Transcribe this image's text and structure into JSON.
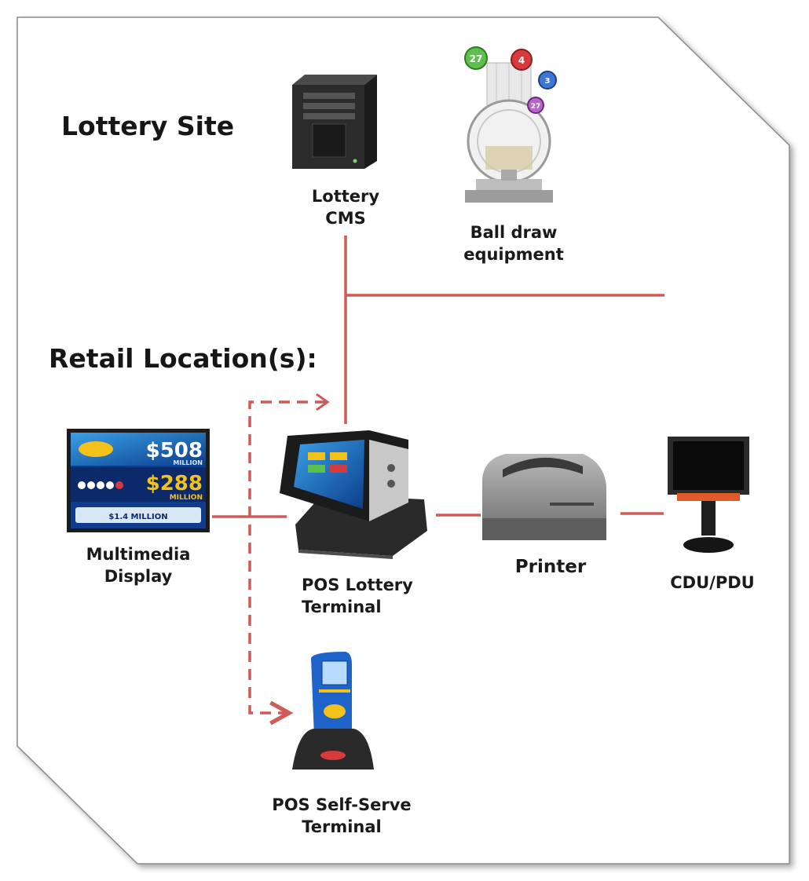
{
  "sections": {
    "lottery_site": "Lottery Site",
    "retail_locations": "Retail Location(s):"
  },
  "nodes": {
    "cms": {
      "label": "Lottery\nCMS",
      "icon": "server-icon"
    },
    "ball_draw": {
      "label": "Ball draw\nequipment",
      "icon": "ball-draw-machine-icon",
      "ball_numbers": [
        "27",
        "4",
        "3",
        "27"
      ]
    },
    "display": {
      "label": "Multimedia\nDisplay",
      "icon": "display-screen-icon",
      "screen": {
        "jackpot1": "$508",
        "jackpot1_unit": "MILLION",
        "jackpot2": "$288",
        "jackpot2_unit": "MILLION",
        "jackpot3": "$1.4 MILLION"
      }
    },
    "pos_terminal": {
      "label": "POS Lottery\nTerminal",
      "icon": "pos-terminal-icon"
    },
    "printer": {
      "label": "Printer",
      "icon": "printer-icon"
    },
    "cdu": {
      "label": "CDU/PDU",
      "icon": "customer-display-icon"
    },
    "self_serve": {
      "label": "POS Self-Serve\nTerminal",
      "icon": "kiosk-icon"
    }
  },
  "colors": {
    "connector": "#cf5a56",
    "frame": "#8a8a8a",
    "server": "#2c2c2c",
    "display_blue": "#1b56b8",
    "display_gold": "#f2c21b",
    "kiosk_blue": "#1e63c9"
  }
}
